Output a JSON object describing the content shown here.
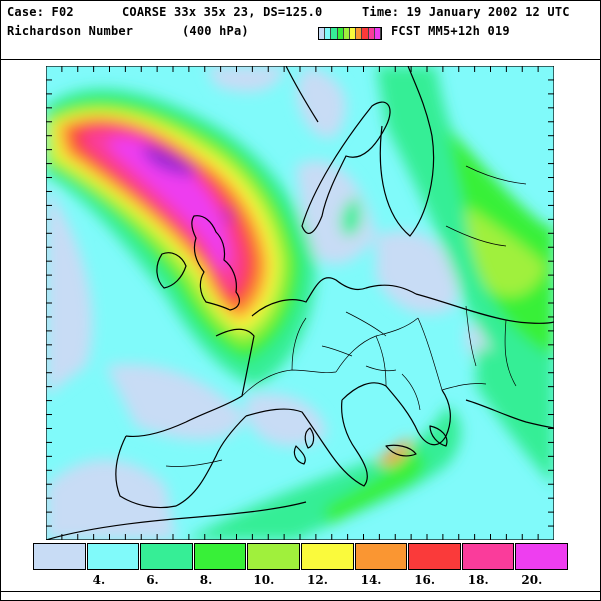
{
  "header": {
    "case": "Case: F02",
    "grid": "COARSE 33x 35x 23, DS=125.0",
    "time": "Time: 19 January",
    "datetime": "2002 12 UTC",
    "field": "Richardson Number",
    "level": "(400 hPa)",
    "forecast": "FCST MM5+12h 019"
  },
  "legend": {
    "colors": [
      "#c8dcf5",
      "#80fafa",
      "#36ee96",
      "#38f038",
      "#a0f03c",
      "#fafa3c",
      "#fa9632",
      "#fa3a3a",
      "#fa3c9b",
      "#ee3ef0"
    ],
    "labels": [
      "4.",
      "6.",
      "8.",
      "10.",
      "12.",
      "14.",
      "16.",
      "18.",
      "20."
    ]
  }
}
